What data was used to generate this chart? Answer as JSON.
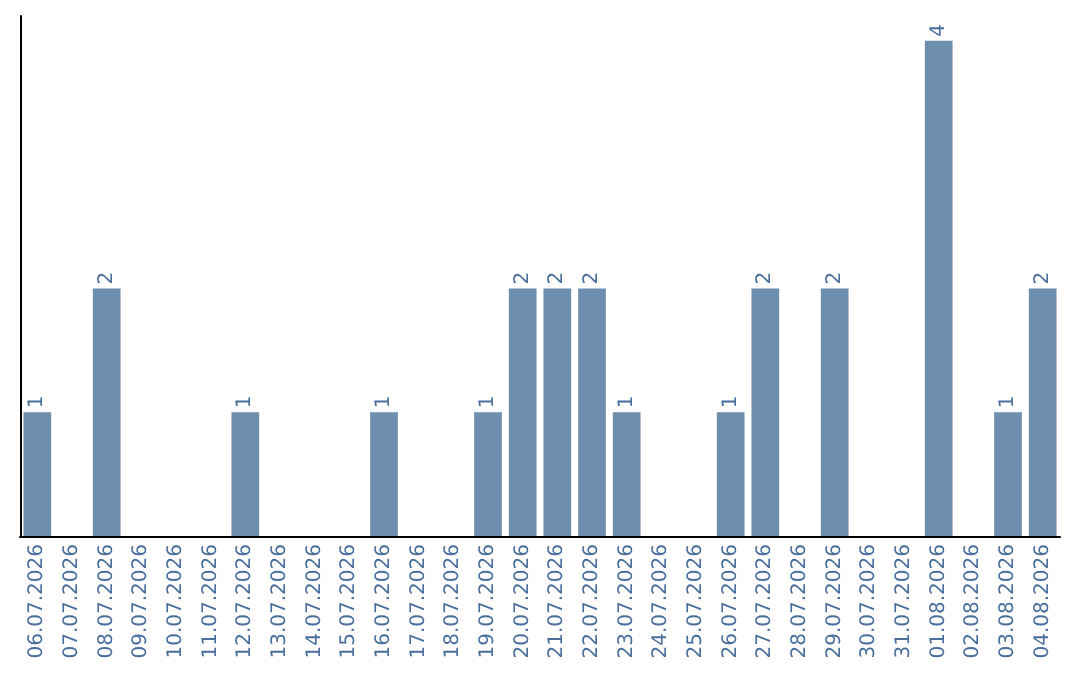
{
  "chart_data": {
    "type": "bar",
    "categories": [
      "06.07.2026",
      "07.07.2026",
      "08.07.2026",
      "09.07.2026",
      "10.07.2026",
      "11.07.2026",
      "12.07.2026",
      "13.07.2026",
      "14.07.2026",
      "15.07.2026",
      "16.07.2026",
      "17.07.2026",
      "18.07.2026",
      "19.07.2026",
      "20.07.2026",
      "21.07.2026",
      "22.07.2026",
      "23.07.2026",
      "24.07.2026",
      "25.07.2026",
      "26.07.2026",
      "27.07.2026",
      "28.07.2026",
      "29.07.2026",
      "30.07.2026",
      "31.07.2026",
      "01.08.2026",
      "02.08.2026",
      "03.08.2026",
      "04.08.2026"
    ],
    "values": [
      1,
      0,
      2,
      0,
      0,
      0,
      1,
      0,
      0,
      0,
      1,
      0,
      0,
      1,
      2,
      2,
      2,
      1,
      0,
      0,
      1,
      2,
      0,
      2,
      0,
      0,
      4,
      0,
      1,
      2
    ],
    "value_labels": [
      "1",
      null,
      "2",
      null,
      null,
      null,
      "1",
      null,
      null,
      null,
      "1",
      null,
      null,
      "1",
      "2",
      "2",
      "2",
      "1",
      null,
      null,
      "1",
      "2",
      null,
      "2",
      null,
      null,
      "4",
      null,
      "1",
      "2"
    ],
    "color": "#6d8fad",
    "ylim": [
      0,
      4.2
    ],
    "tick_labels": "x",
    "grid": false
  }
}
